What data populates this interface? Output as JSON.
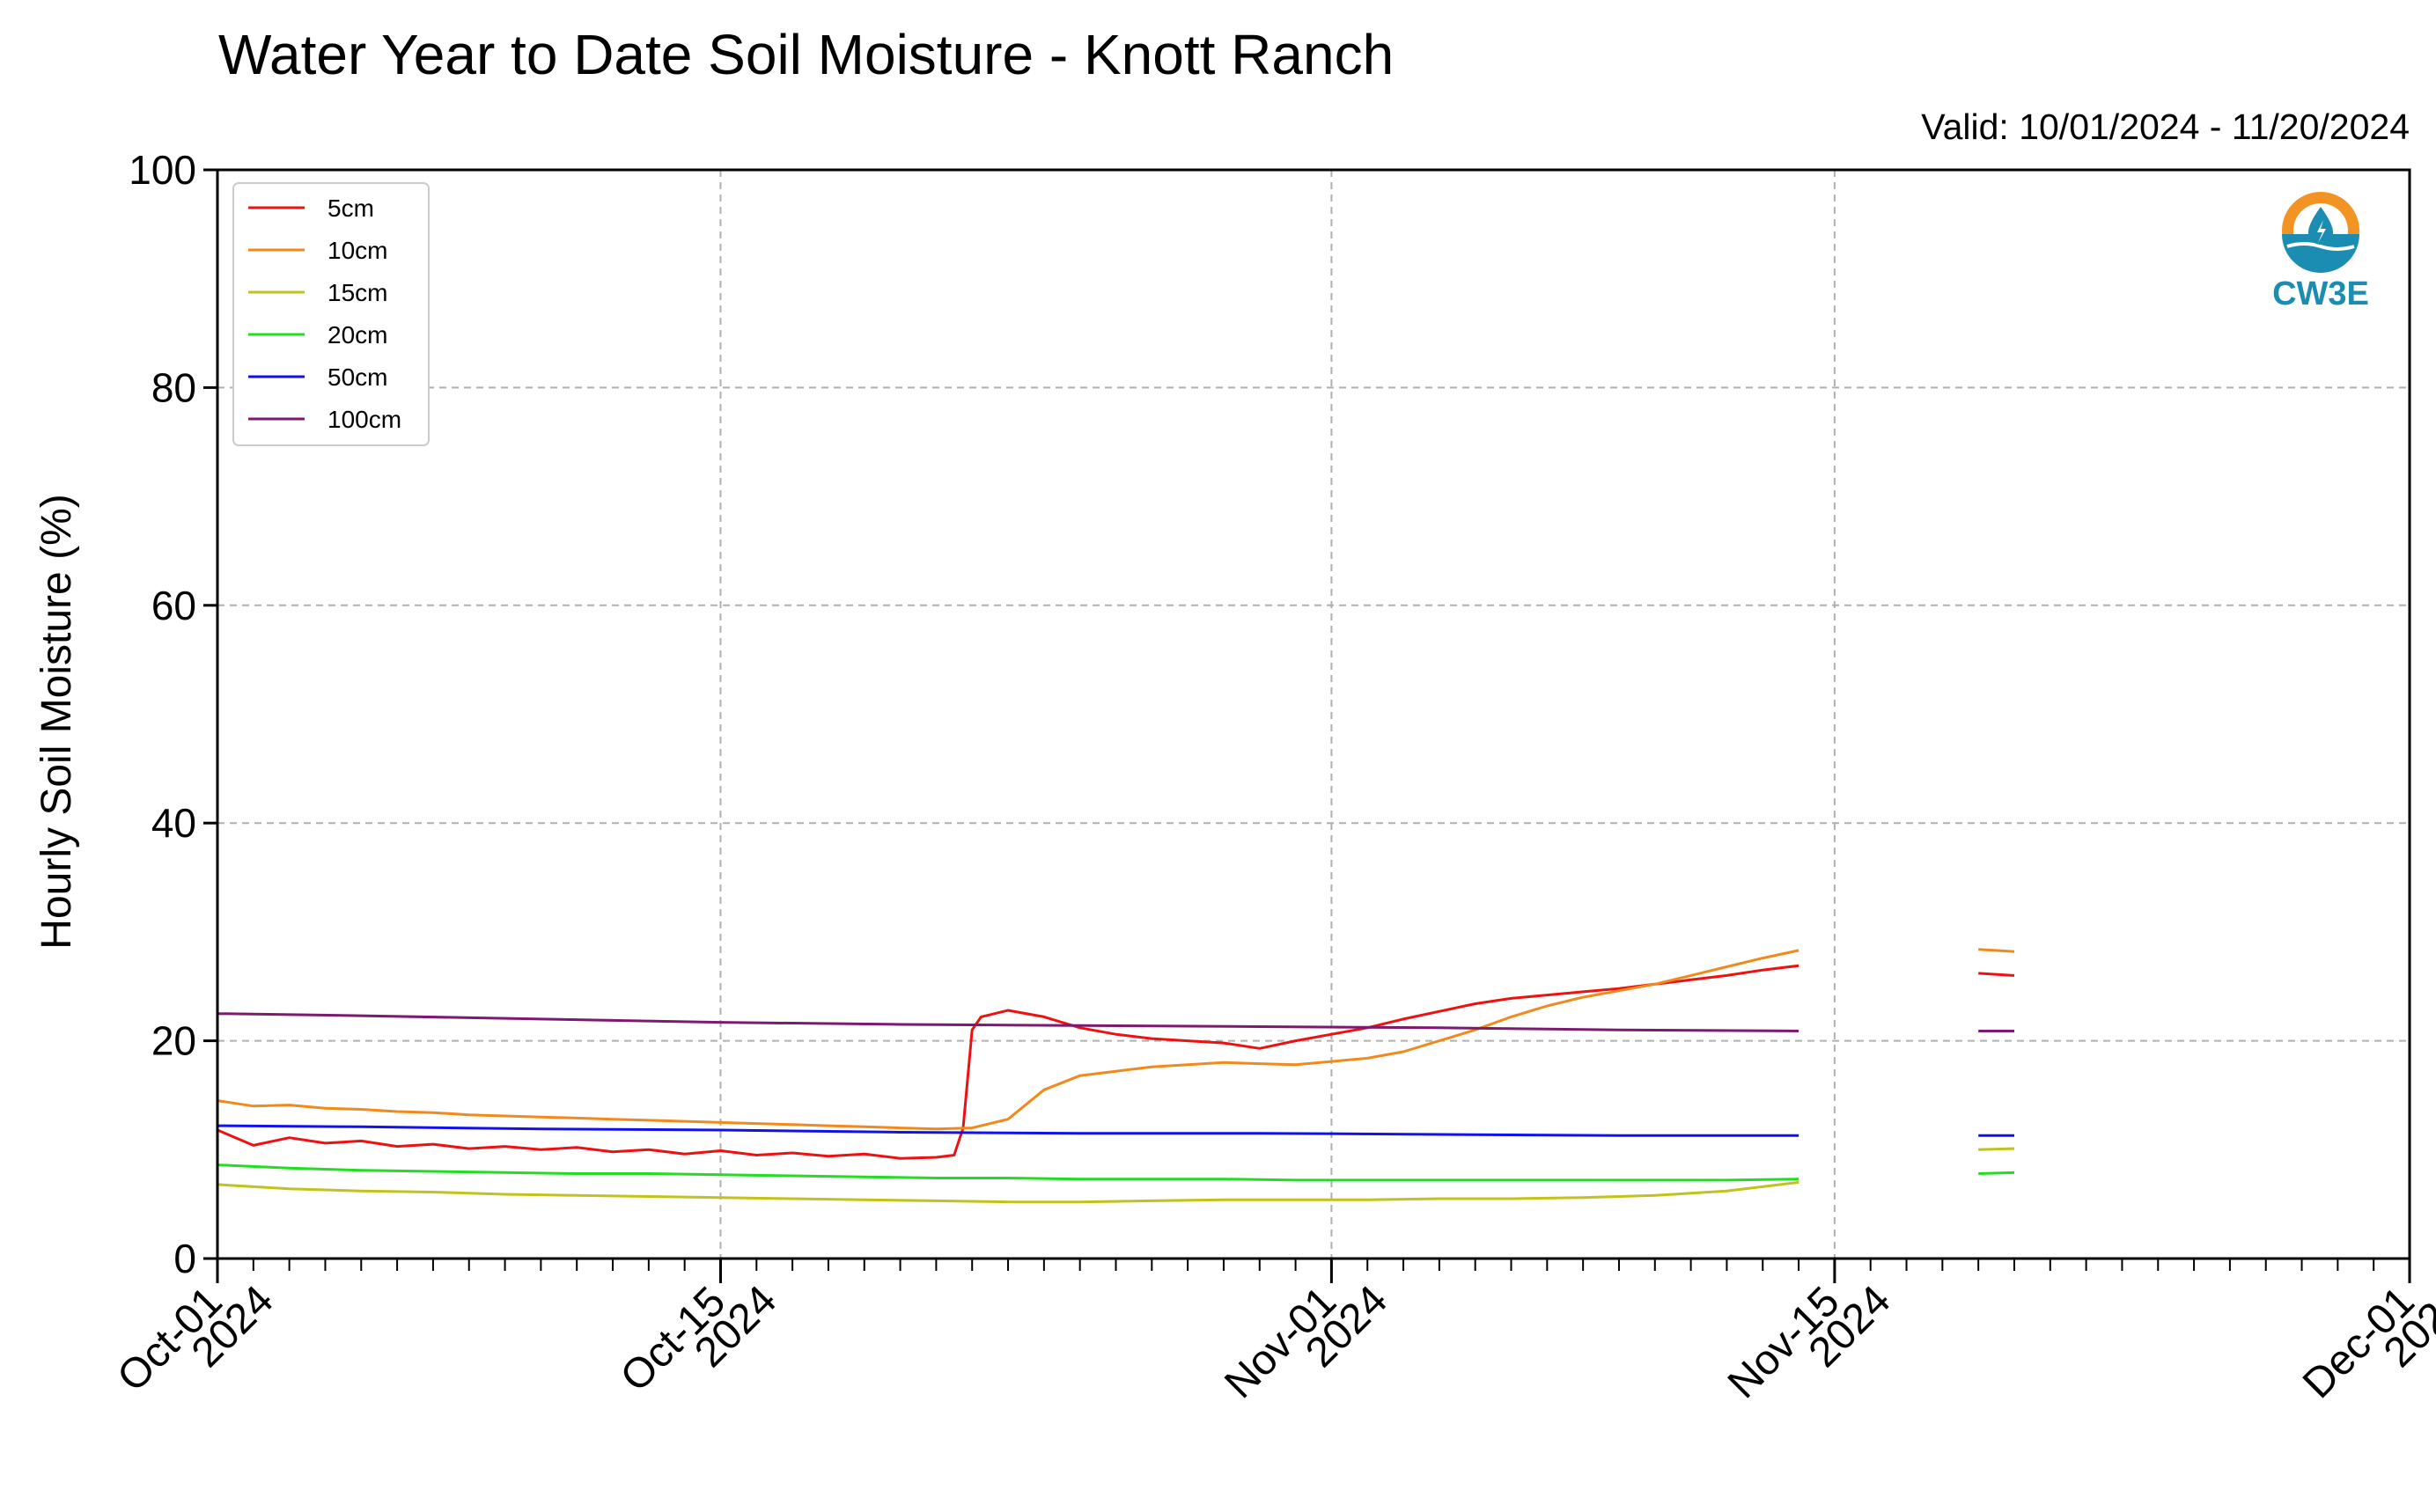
{
  "chart_data": {
    "type": "line",
    "title": "Water Year to Date Soil Moisture - Knott Ranch",
    "subtitle": "Valid: 10/01/2024 - 11/20/2024",
    "ylabel": "Hourly Soil Moisture (%)",
    "xlabel": "",
    "ylim": [
      0,
      100
    ],
    "xlim": [
      "2024-10-01",
      "2024-12-01"
    ],
    "yticks": [
      "0",
      "20",
      "40",
      "60",
      "80",
      "100"
    ],
    "xticks": [
      {
        "date": "2024-10-01",
        "line1": "Oct-01",
        "line2": "2024"
      },
      {
        "date": "2024-10-15",
        "line1": "Oct-15",
        "line2": "2024"
      },
      {
        "date": "2024-11-01",
        "line1": "Nov-01",
        "line2": "2024"
      },
      {
        "date": "2024-11-15",
        "line1": "Nov-15",
        "line2": "2024"
      },
      {
        "date": "2024-12-01",
        "line1": "Dec-01",
        "line2": "2024"
      }
    ],
    "grid": true,
    "legend_position": "top-left",
    "logo_text": "CW3E",
    "series": [
      {
        "name": "5cm",
        "color": "#ee1111",
        "segments": [
          [
            [
              "2024-10-01",
              11.8
            ],
            [
              "2024-10-02",
              10.4
            ],
            [
              "2024-10-03",
              11.1
            ],
            [
              "2024-10-04",
              10.6
            ],
            [
              "2024-10-05",
              10.8
            ],
            [
              "2024-10-06",
              10.3
            ],
            [
              "2024-10-07",
              10.5
            ],
            [
              "2024-10-08",
              10.1
            ],
            [
              "2024-10-09",
              10.3
            ],
            [
              "2024-10-10",
              10.0
            ],
            [
              "2024-10-11",
              10.2
            ],
            [
              "2024-10-12",
              9.8
            ],
            [
              "2024-10-13",
              10.0
            ],
            [
              "2024-10-14",
              9.6
            ],
            [
              "2024-10-15",
              9.9
            ],
            [
              "2024-10-16",
              9.5
            ],
            [
              "2024-10-17",
              9.7
            ],
            [
              "2024-10-18",
              9.4
            ],
            [
              "2024-10-19",
              9.6
            ],
            [
              "2024-10-20",
              9.2
            ],
            [
              "2024-10-21",
              9.3
            ],
            [
              "2024-10-21T12:00",
              9.5
            ],
            [
              "2024-10-21T18:00",
              12.0
            ],
            [
              "2024-10-22",
              21.0
            ],
            [
              "2024-10-22T06:00",
              22.2
            ],
            [
              "2024-10-23",
              22.8
            ],
            [
              "2024-10-24",
              22.2
            ],
            [
              "2024-10-25",
              21.2
            ],
            [
              "2024-10-26",
              20.6
            ],
            [
              "2024-10-27",
              20.2
            ],
            [
              "2024-10-28",
              20.0
            ],
            [
              "2024-10-29",
              19.8
            ],
            [
              "2024-10-30",
              19.3
            ],
            [
              "2024-10-31",
              20.0
            ],
            [
              "2024-11-01",
              20.6
            ],
            [
              "2024-11-02",
              21.2
            ],
            [
              "2024-11-03",
              22.0
            ],
            [
              "2024-11-04",
              22.7
            ],
            [
              "2024-11-05",
              23.4
            ],
            [
              "2024-11-06",
              23.9
            ],
            [
              "2024-11-07",
              24.2
            ],
            [
              "2024-11-08",
              24.5
            ],
            [
              "2024-11-09",
              24.8
            ],
            [
              "2024-11-10",
              25.2
            ],
            [
              "2024-11-11",
              25.6
            ],
            [
              "2024-11-12",
              26.0
            ],
            [
              "2024-11-13",
              26.5
            ],
            [
              "2024-11-14",
              26.9
            ]
          ],
          [
            [
              "2024-11-19",
              26.2
            ],
            [
              "2024-11-20",
              26.0
            ]
          ]
        ]
      },
      {
        "name": "10cm",
        "color": "#f08a1c",
        "segments": [
          [
            [
              "2024-10-01",
              14.5
            ],
            [
              "2024-10-02",
              14.0
            ],
            [
              "2024-10-03",
              14.1
            ],
            [
              "2024-10-04",
              13.8
            ],
            [
              "2024-10-05",
              13.7
            ],
            [
              "2024-10-06",
              13.5
            ],
            [
              "2024-10-07",
              13.4
            ],
            [
              "2024-10-08",
              13.2
            ],
            [
              "2024-10-09",
              13.1
            ],
            [
              "2024-10-10",
              13.0
            ],
            [
              "2024-10-11",
              12.9
            ],
            [
              "2024-10-12",
              12.8
            ],
            [
              "2024-10-13",
              12.7
            ],
            [
              "2024-10-14",
              12.6
            ],
            [
              "2024-10-15",
              12.5
            ],
            [
              "2024-10-16",
              12.4
            ],
            [
              "2024-10-17",
              12.3
            ],
            [
              "2024-10-18",
              12.2
            ],
            [
              "2024-10-19",
              12.1
            ],
            [
              "2024-10-20",
              12.0
            ],
            [
              "2024-10-21",
              11.9
            ],
            [
              "2024-10-22",
              12.0
            ],
            [
              "2024-10-23",
              12.8
            ],
            [
              "2024-10-24",
              15.5
            ],
            [
              "2024-10-25",
              16.8
            ],
            [
              "2024-10-26",
              17.2
            ],
            [
              "2024-10-27",
              17.6
            ],
            [
              "2024-10-28",
              17.8
            ],
            [
              "2024-10-29",
              18.0
            ],
            [
              "2024-10-30",
              17.9
            ],
            [
              "2024-10-31",
              17.8
            ],
            [
              "2024-11-01",
              18.1
            ],
            [
              "2024-11-02",
              18.4
            ],
            [
              "2024-11-03",
              19.0
            ],
            [
              "2024-11-04",
              20.0
            ],
            [
              "2024-11-05",
              21.0
            ],
            [
              "2024-11-06",
              22.2
            ],
            [
              "2024-11-07",
              23.2
            ],
            [
              "2024-11-08",
              24.0
            ],
            [
              "2024-11-09",
              24.6
            ],
            [
              "2024-11-10",
              25.2
            ],
            [
              "2024-11-11",
              26.0
            ],
            [
              "2024-11-12",
              26.8
            ],
            [
              "2024-11-13",
              27.6
            ],
            [
              "2024-11-14",
              28.3
            ]
          ],
          [
            [
              "2024-11-19",
              28.4
            ],
            [
              "2024-11-20",
              28.2
            ]
          ]
        ]
      },
      {
        "name": "15cm",
        "color": "#c2c21d",
        "segments": [
          [
            [
              "2024-10-01",
              6.8
            ],
            [
              "2024-10-03",
              6.4
            ],
            [
              "2024-10-05",
              6.2
            ],
            [
              "2024-10-07",
              6.1
            ],
            [
              "2024-10-09",
              5.9
            ],
            [
              "2024-10-11",
              5.8
            ],
            [
              "2024-10-13",
              5.7
            ],
            [
              "2024-10-15",
              5.6
            ],
            [
              "2024-10-17",
              5.5
            ],
            [
              "2024-10-19",
              5.4
            ],
            [
              "2024-10-21",
              5.3
            ],
            [
              "2024-10-23",
              5.2
            ],
            [
              "2024-10-25",
              5.2
            ],
            [
              "2024-10-27",
              5.3
            ],
            [
              "2024-10-29",
              5.4
            ],
            [
              "2024-10-31",
              5.4
            ],
            [
              "2024-11-02",
              5.4
            ],
            [
              "2024-11-04",
              5.5
            ],
            [
              "2024-11-06",
              5.5
            ],
            [
              "2024-11-08",
              5.6
            ],
            [
              "2024-11-10",
              5.8
            ],
            [
              "2024-11-12",
              6.2
            ],
            [
              "2024-11-14",
              7.0
            ]
          ],
          [
            [
              "2024-11-19",
              10.0
            ],
            [
              "2024-11-20",
              10.1
            ]
          ]
        ]
      },
      {
        "name": "20cm",
        "color": "#22dd22",
        "segments": [
          [
            [
              "2024-10-01",
              8.6
            ],
            [
              "2024-10-03",
              8.3
            ],
            [
              "2024-10-05",
              8.1
            ],
            [
              "2024-10-07",
              8.0
            ],
            [
              "2024-10-09",
              7.9
            ],
            [
              "2024-10-11",
              7.8
            ],
            [
              "2024-10-13",
              7.8
            ],
            [
              "2024-10-15",
              7.7
            ],
            [
              "2024-10-17",
              7.6
            ],
            [
              "2024-10-19",
              7.5
            ],
            [
              "2024-10-21",
              7.4
            ],
            [
              "2024-10-23",
              7.4
            ],
            [
              "2024-10-25",
              7.3
            ],
            [
              "2024-10-27",
              7.3
            ],
            [
              "2024-10-29",
              7.3
            ],
            [
              "2024-10-31",
              7.2
            ],
            [
              "2024-11-02",
              7.2
            ],
            [
              "2024-11-04",
              7.2
            ],
            [
              "2024-11-06",
              7.2
            ],
            [
              "2024-11-08",
              7.2
            ],
            [
              "2024-11-10",
              7.2
            ],
            [
              "2024-11-12",
              7.2
            ],
            [
              "2024-11-14",
              7.3
            ]
          ],
          [
            [
              "2024-11-19",
              7.8
            ],
            [
              "2024-11-20",
              7.9
            ]
          ]
        ]
      },
      {
        "name": "50cm",
        "color": "#1111ee",
        "segments": [
          [
            [
              "2024-10-01",
              12.2
            ],
            [
              "2024-10-05",
              12.1
            ],
            [
              "2024-10-10",
              11.9
            ],
            [
              "2024-10-15",
              11.8
            ],
            [
              "2024-10-20",
              11.6
            ],
            [
              "2024-10-25",
              11.5
            ],
            [
              "2024-10-30",
              11.5
            ],
            [
              "2024-11-04",
              11.4
            ],
            [
              "2024-11-09",
              11.3
            ],
            [
              "2024-11-14",
              11.3
            ]
          ],
          [
            [
              "2024-11-19",
              11.3
            ],
            [
              "2024-11-20",
              11.3
            ]
          ]
        ]
      },
      {
        "name": "100cm",
        "color": "#7b1a6e",
        "segments": [
          [
            [
              "2024-10-01",
              22.5
            ],
            [
              "2024-10-05",
              22.3
            ],
            [
              "2024-10-10",
              22.0
            ],
            [
              "2024-10-15",
              21.7
            ],
            [
              "2024-10-20",
              21.5
            ],
            [
              "2024-10-25",
              21.4
            ],
            [
              "2024-10-30",
              21.3
            ],
            [
              "2024-11-04",
              21.2
            ],
            [
              "2024-11-09",
              21.0
            ],
            [
              "2024-11-14",
              20.9
            ]
          ],
          [
            [
              "2024-11-19",
              20.9
            ],
            [
              "2024-11-20",
              20.9
            ]
          ]
        ]
      }
    ]
  }
}
